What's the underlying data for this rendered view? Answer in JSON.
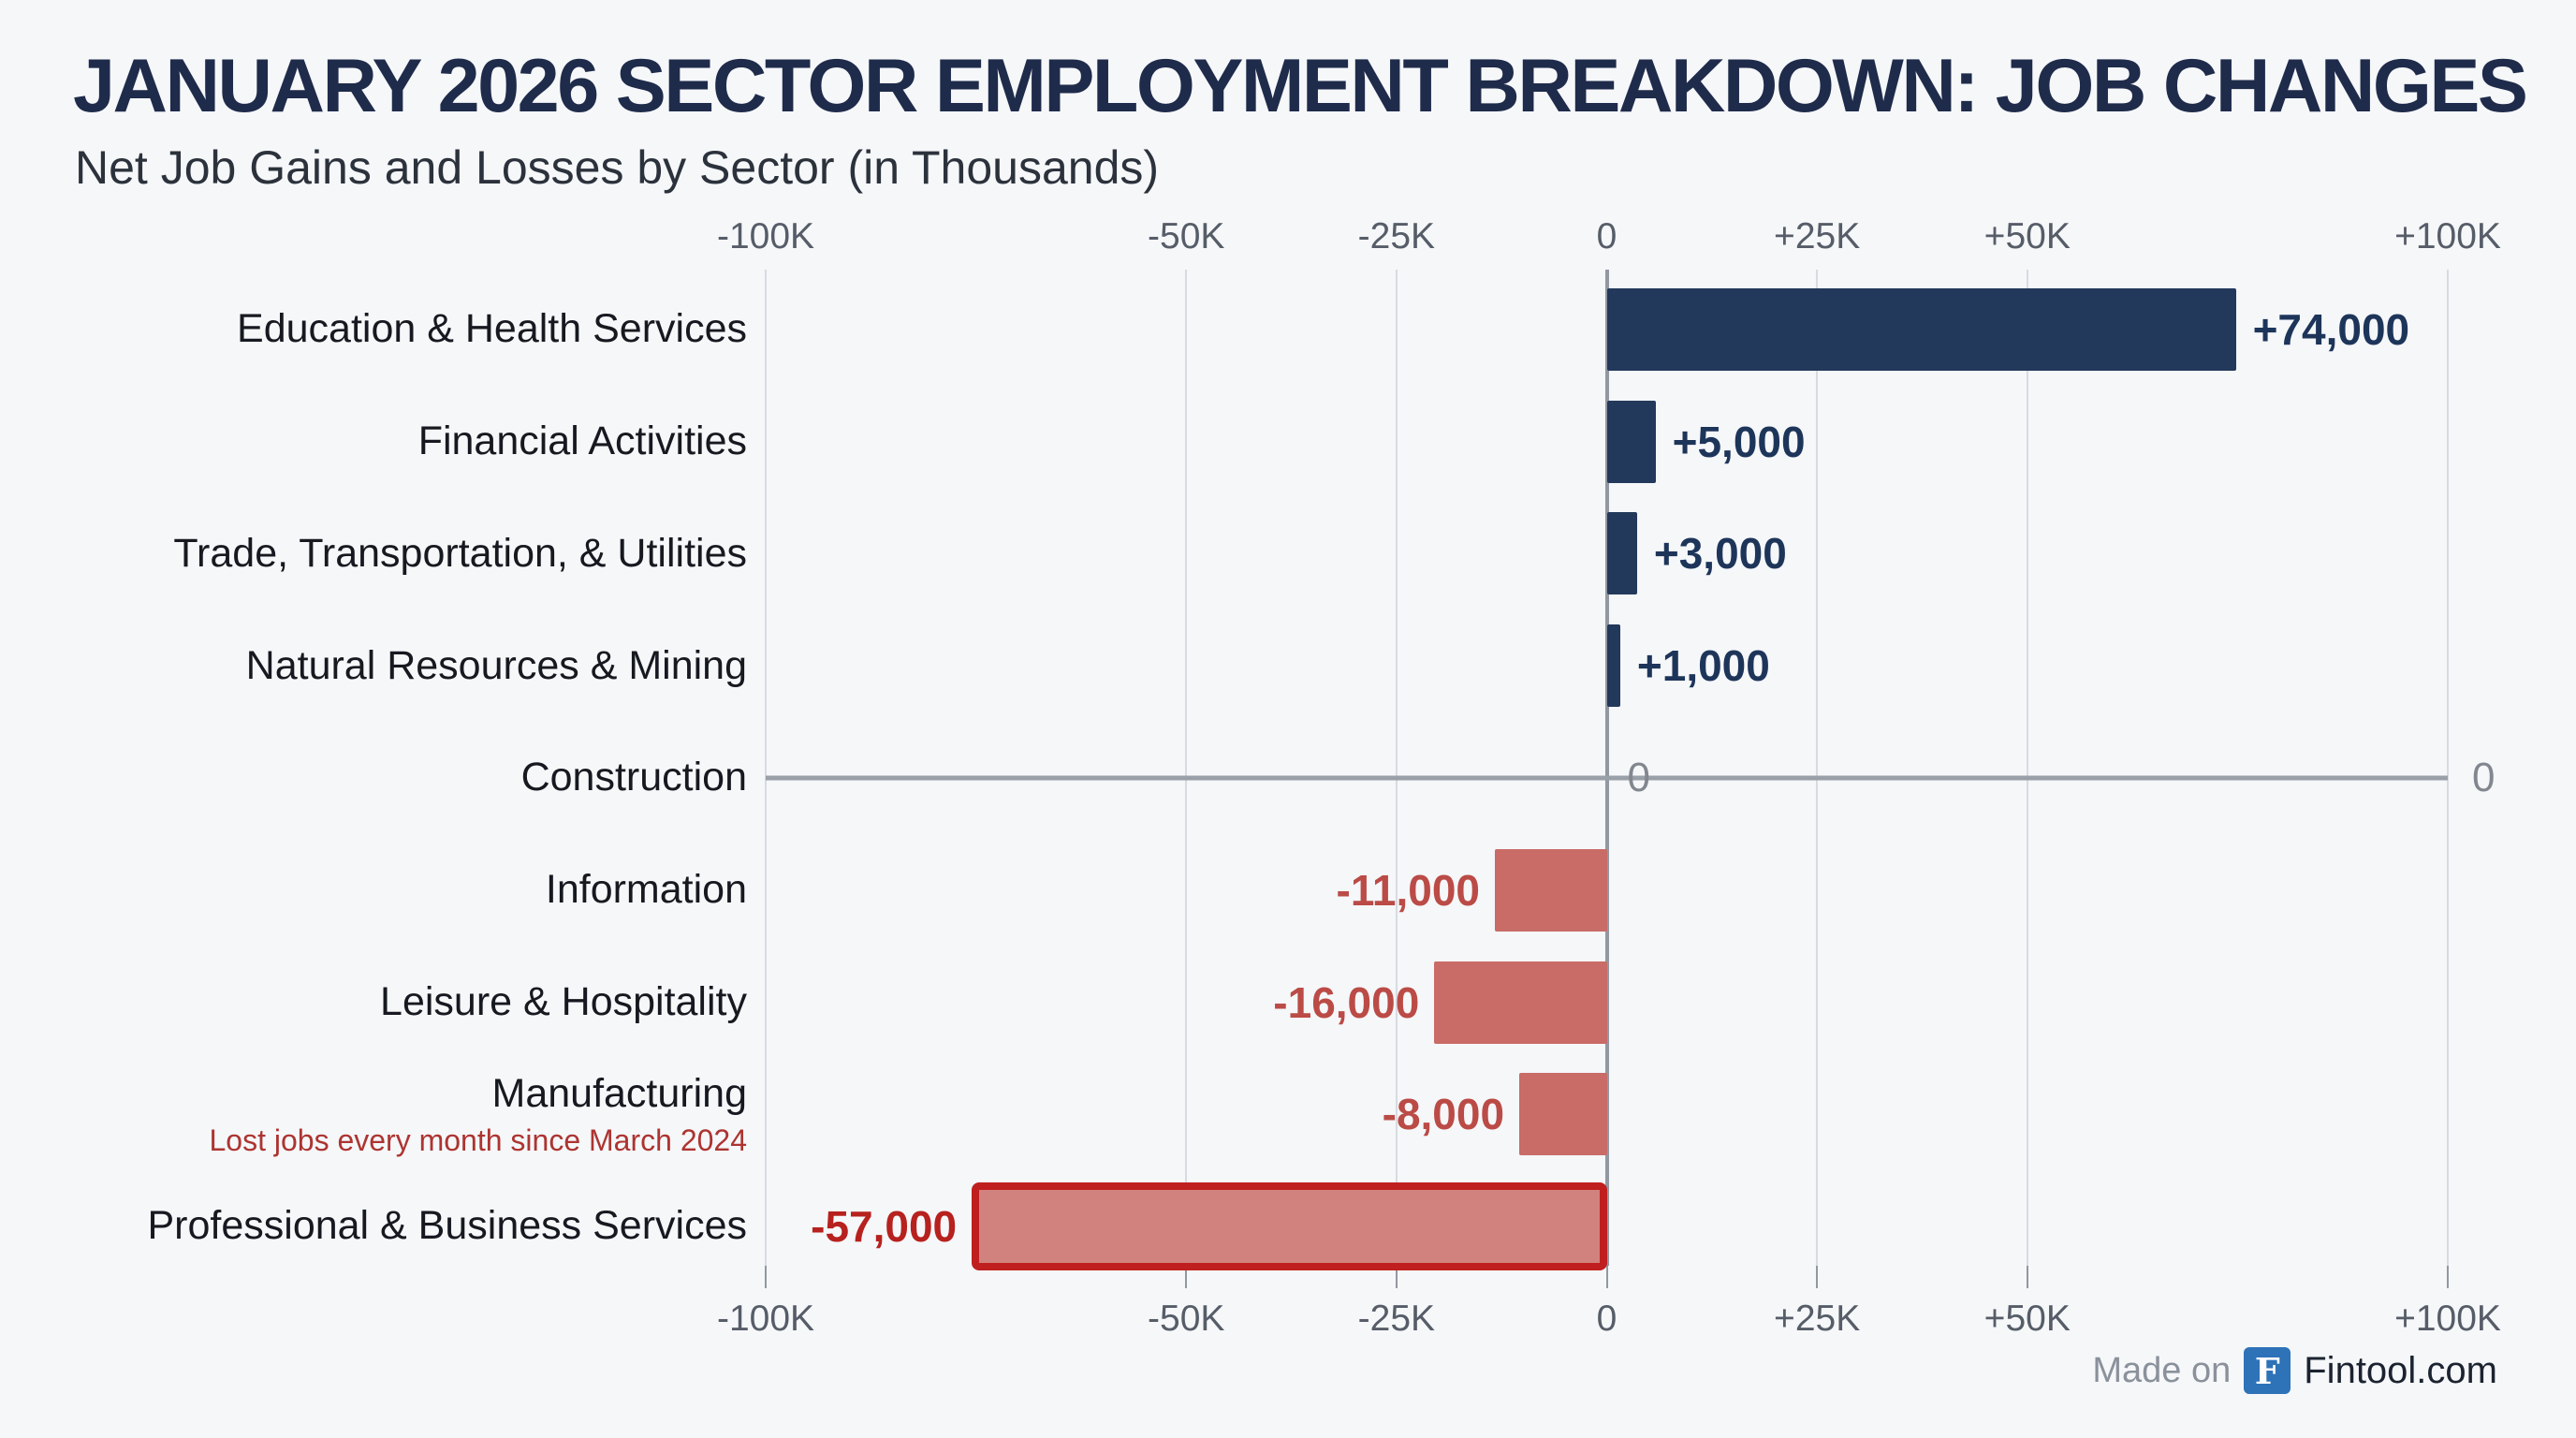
{
  "header": {
    "title": "JANUARY 2026 SECTOR EMPLOYMENT BREAKDOWN: JOB CHANGES",
    "subtitle": "Net Job Gains and Losses by Sector (in Thousands)"
  },
  "footer": {
    "made_on": "Made on",
    "logo_letter": "F",
    "brand": "Fintool.com"
  },
  "chart_data": {
    "type": "bar",
    "orientation": "horizontal",
    "title": "JANUARY 2026 SECTOR EMPLOYMENT BREAKDOWN: JOB CHANGES",
    "subtitle": "Net Job Gains and Losses by Sector (in Thousands)",
    "xlim": [
      -100000,
      100000
    ],
    "grid": true,
    "x_tick_labels": [
      "-100K",
      "-50K",
      "-25K",
      "0",
      "+25K",
      "+50K",
      "+100K"
    ],
    "x_tick_values_k": [
      -100,
      -50,
      -25,
      0,
      25,
      50,
      100
    ],
    "categories": [
      "Education & Health Services",
      "Financial Activities",
      "Trade, Transportation, & Utilities",
      "Natural Resources & Mining",
      "Construction",
      "Information",
      "Leisure & Hospitality",
      "Manufacturing",
      "Professional & Business Services"
    ],
    "values": [
      74000,
      5000,
      3000,
      1000,
      0,
      -11000,
      -16000,
      -8000,
      -57000
    ],
    "value_labels": [
      "+74,000",
      "+5,000",
      "+3,000",
      "+1,000",
      "0",
      "-11,000",
      "-16,000",
      "-8,000",
      "-57,000"
    ],
    "bars": [
      {
        "category": "Education & Health Services",
        "value": 74000,
        "label": "+74,000",
        "kind": "positive"
      },
      {
        "category": "Financial Activities",
        "value": 5000,
        "label": "+5,000",
        "kind": "positive"
      },
      {
        "category": "Trade, Transportation, & Utilities",
        "value": 3000,
        "label": "+3,000",
        "kind": "positive"
      },
      {
        "category": "Natural Resources & Mining",
        "value": 1000,
        "label": "+1,000",
        "kind": "positive"
      },
      {
        "category": "Construction",
        "value": 0,
        "label": "0",
        "kind": "zero",
        "extra_right_label": "0"
      },
      {
        "category": "Information",
        "value": -11000,
        "label": "-11,000",
        "kind": "negative"
      },
      {
        "category": "Leisure & Hospitality",
        "value": -16000,
        "label": "-16,000",
        "kind": "negative"
      },
      {
        "category": "Manufacturing",
        "value": -8000,
        "label": "-8,000",
        "kind": "negative",
        "annotation": "Lost jobs every month since March 2024"
      },
      {
        "category": "Professional & Business Services",
        "value": -57000,
        "label": "-57,000",
        "kind": "negative",
        "highlight": true
      }
    ]
  },
  "render": {
    "visual_k": [
      74.8,
      5.8,
      3.6,
      1.6,
      0,
      13.3,
      20.5,
      10.4,
      75.5
    ],
    "colors": {
      "background": "#f5f7f9",
      "title": "#1f2b4a",
      "subtitle": "#2c323c",
      "category_label": "#16191f",
      "axis_label": "#565d68",
      "gridline": "#d7dbe1",
      "zero_axis": "#9298a1",
      "zero_line": "#9aa0a8",
      "zero_value_label": "#82878f",
      "positive_bar": "#23395b",
      "positive_value": "#1e355a",
      "negative_bar": "#c96b67",
      "negative_value": "#bb4b46",
      "highlight_border": "#c01f1f",
      "highlight_fill": "#d2827e",
      "highlight_value": "#b7211e",
      "annotation": "#ad3431",
      "footer_muted": "#8b919b",
      "footer_brand": "#1c2330",
      "logo_color": "#2e72b8"
    }
  }
}
